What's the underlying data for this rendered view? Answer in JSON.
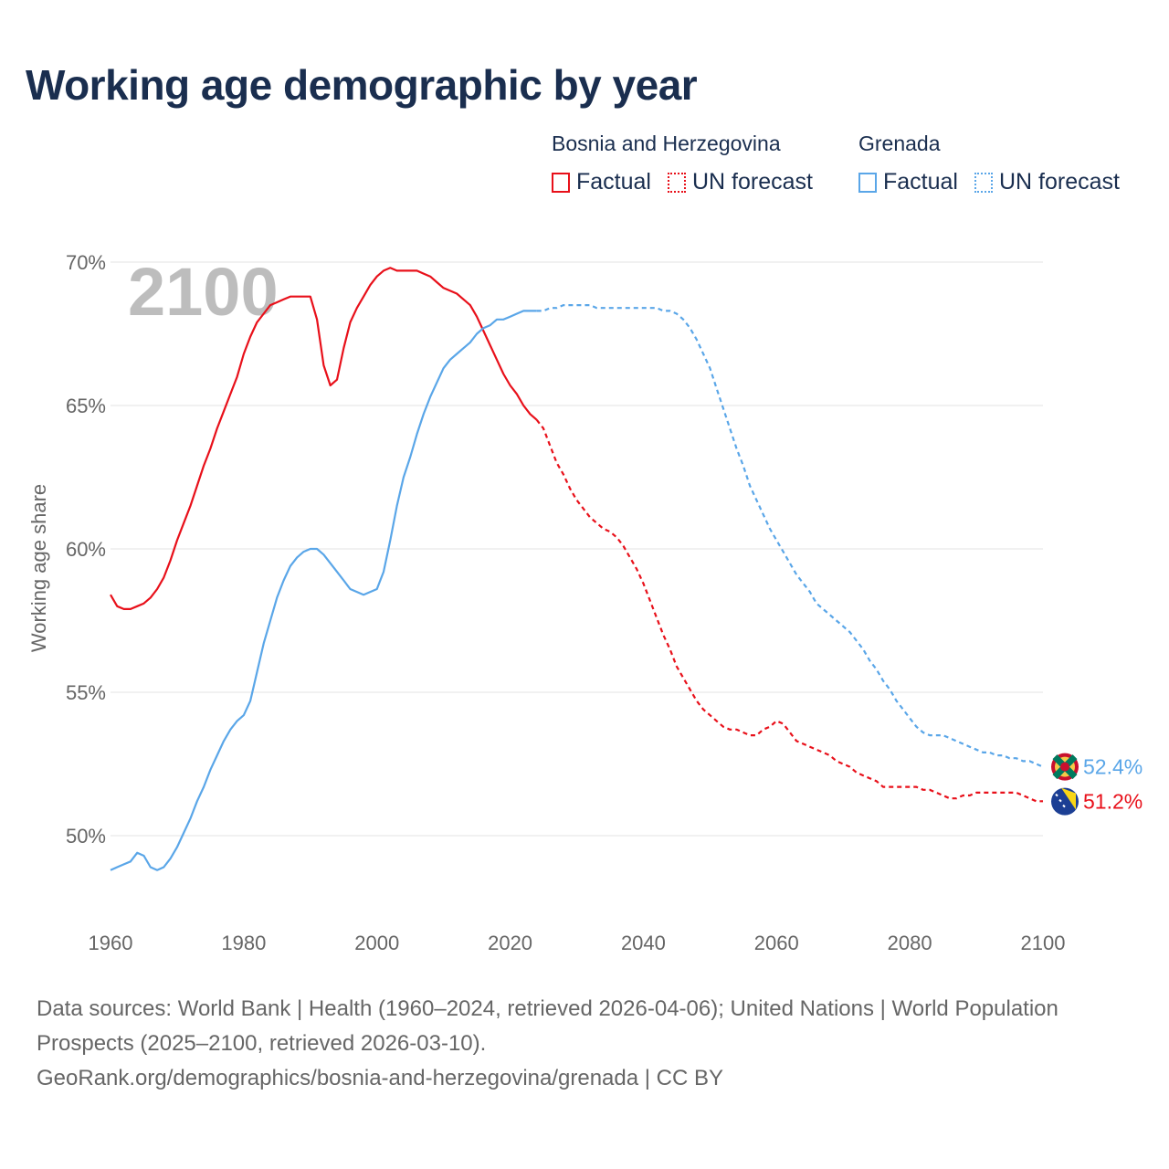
{
  "title": "Working age demographic by year",
  "legend": {
    "bosnia": {
      "name": "Bosnia and Herzegovina",
      "factual": "Factual",
      "forecast": "UN forecast",
      "color": "#e8101a"
    },
    "grenada": {
      "name": "Grenada",
      "factual": "Factual",
      "forecast": "UN forecast",
      "color": "#5aa6e8"
    }
  },
  "chart_data": {
    "type": "line",
    "title": "Working age demographic by year",
    "year_watermark": "2100",
    "xlabel": "",
    "ylabel": "Working age share",
    "xlim": [
      1960,
      2100
    ],
    "ylim": [
      48,
      70
    ],
    "x_ticks": [
      "1960",
      "1980",
      "2000",
      "2020",
      "2040",
      "2060",
      "2080",
      "2100"
    ],
    "y_ticks": [
      "50%",
      "55%",
      "60%",
      "65%",
      "70%"
    ],
    "factual_end_year": 2024,
    "series": [
      {
        "name": "Bosnia and Herzegovina",
        "color": "#e8101a",
        "end_label": "51.2%",
        "points": [
          [
            1960,
            58.4
          ],
          [
            1961,
            58.0
          ],
          [
            1962,
            57.9
          ],
          [
            1963,
            57.9
          ],
          [
            1964,
            58.0
          ],
          [
            1965,
            58.1
          ],
          [
            1966,
            58.3
          ],
          [
            1967,
            58.6
          ],
          [
            1968,
            59.0
          ],
          [
            1969,
            59.6
          ],
          [
            1970,
            60.3
          ],
          [
            1971,
            60.9
          ],
          [
            1972,
            61.5
          ],
          [
            1973,
            62.2
          ],
          [
            1974,
            62.9
          ],
          [
            1975,
            63.5
          ],
          [
            1976,
            64.2
          ],
          [
            1977,
            64.8
          ],
          [
            1978,
            65.4
          ],
          [
            1979,
            66.0
          ],
          [
            1980,
            66.8
          ],
          [
            1981,
            67.4
          ],
          [
            1982,
            67.9
          ],
          [
            1983,
            68.2
          ],
          [
            1984,
            68.5
          ],
          [
            1985,
            68.6
          ],
          [
            1986,
            68.7
          ],
          [
            1987,
            68.8
          ],
          [
            1988,
            68.8
          ],
          [
            1989,
            68.8
          ],
          [
            1990,
            68.8
          ],
          [
            1991,
            68.0
          ],
          [
            1992,
            66.4
          ],
          [
            1993,
            65.7
          ],
          [
            1994,
            65.9
          ],
          [
            1995,
            67.0
          ],
          [
            1996,
            67.9
          ],
          [
            1997,
            68.4
          ],
          [
            1998,
            68.8
          ],
          [
            1999,
            69.2
          ],
          [
            2000,
            69.5
          ],
          [
            2001,
            69.7
          ],
          [
            2002,
            69.8
          ],
          [
            2003,
            69.7
          ],
          [
            2004,
            69.7
          ],
          [
            2005,
            69.7
          ],
          [
            2006,
            69.7
          ],
          [
            2007,
            69.6
          ],
          [
            2008,
            69.5
          ],
          [
            2009,
            69.3
          ],
          [
            2010,
            69.1
          ],
          [
            2011,
            69.0
          ],
          [
            2012,
            68.9
          ],
          [
            2013,
            68.7
          ],
          [
            2014,
            68.5
          ],
          [
            2015,
            68.1
          ],
          [
            2016,
            67.6
          ],
          [
            2017,
            67.1
          ],
          [
            2018,
            66.6
          ],
          [
            2019,
            66.1
          ],
          [
            2020,
            65.7
          ],
          [
            2021,
            65.4
          ],
          [
            2022,
            65.0
          ],
          [
            2023,
            64.7
          ],
          [
            2024,
            64.5
          ],
          [
            2025,
            64.2
          ],
          [
            2026,
            63.6
          ],
          [
            2027,
            63.0
          ],
          [
            2028,
            62.6
          ],
          [
            2029,
            62.1
          ],
          [
            2030,
            61.7
          ],
          [
            2031,
            61.4
          ],
          [
            2032,
            61.1
          ],
          [
            2033,
            60.9
          ],
          [
            2034,
            60.7
          ],
          [
            2035,
            60.6
          ],
          [
            2036,
            60.4
          ],
          [
            2037,
            60.1
          ],
          [
            2038,
            59.7
          ],
          [
            2039,
            59.3
          ],
          [
            2040,
            58.8
          ],
          [
            2041,
            58.2
          ],
          [
            2042,
            57.6
          ],
          [
            2043,
            57.0
          ],
          [
            2044,
            56.5
          ],
          [
            2045,
            55.9
          ],
          [
            2046,
            55.5
          ],
          [
            2047,
            55.1
          ],
          [
            2048,
            54.7
          ],
          [
            2049,
            54.4
          ],
          [
            2050,
            54.2
          ],
          [
            2051,
            54.0
          ],
          [
            2052,
            53.8
          ],
          [
            2053,
            53.7
          ],
          [
            2054,
            53.7
          ],
          [
            2055,
            53.6
          ],
          [
            2056,
            53.5
          ],
          [
            2057,
            53.5
          ],
          [
            2058,
            53.7
          ],
          [
            2059,
            53.8
          ],
          [
            2060,
            54.0
          ],
          [
            2061,
            53.9
          ],
          [
            2062,
            53.6
          ],
          [
            2063,
            53.3
          ],
          [
            2064,
            53.2
          ],
          [
            2065,
            53.1
          ],
          [
            2066,
            53.0
          ],
          [
            2067,
            52.9
          ],
          [
            2068,
            52.8
          ],
          [
            2069,
            52.6
          ],
          [
            2070,
            52.5
          ],
          [
            2071,
            52.4
          ],
          [
            2072,
            52.2
          ],
          [
            2073,
            52.1
          ],
          [
            2074,
            52.0
          ],
          [
            2075,
            51.9
          ],
          [
            2076,
            51.7
          ],
          [
            2077,
            51.7
          ],
          [
            2078,
            51.7
          ],
          [
            2079,
            51.7
          ],
          [
            2080,
            51.7
          ],
          [
            2081,
            51.7
          ],
          [
            2082,
            51.6
          ],
          [
            2083,
            51.6
          ],
          [
            2084,
            51.5
          ],
          [
            2085,
            51.4
          ],
          [
            2086,
            51.3
          ],
          [
            2087,
            51.3
          ],
          [
            2088,
            51.4
          ],
          [
            2089,
            51.4
          ],
          [
            2090,
            51.5
          ],
          [
            2091,
            51.5
          ],
          [
            2092,
            51.5
          ],
          [
            2093,
            51.5
          ],
          [
            2094,
            51.5
          ],
          [
            2095,
            51.5
          ],
          [
            2096,
            51.5
          ],
          [
            2097,
            51.4
          ],
          [
            2098,
            51.3
          ],
          [
            2099,
            51.2
          ],
          [
            2100,
            51.2
          ]
        ]
      },
      {
        "name": "Grenada",
        "color": "#5aa6e8",
        "end_label": "52.4%",
        "points": [
          [
            1960,
            48.8
          ],
          [
            1961,
            48.9
          ],
          [
            1962,
            49.0
          ],
          [
            1963,
            49.1
          ],
          [
            1964,
            49.4
          ],
          [
            1965,
            49.3
          ],
          [
            1966,
            48.9
          ],
          [
            1967,
            48.8
          ],
          [
            1968,
            48.9
          ],
          [
            1969,
            49.2
          ],
          [
            1970,
            49.6
          ],
          [
            1971,
            50.1
          ],
          [
            1972,
            50.6
          ],
          [
            1973,
            51.2
          ],
          [
            1974,
            51.7
          ],
          [
            1975,
            52.3
          ],
          [
            1976,
            52.8
          ],
          [
            1977,
            53.3
          ],
          [
            1978,
            53.7
          ],
          [
            1979,
            54.0
          ],
          [
            1980,
            54.2
          ],
          [
            1981,
            54.7
          ],
          [
            1982,
            55.7
          ],
          [
            1983,
            56.7
          ],
          [
            1984,
            57.5
          ],
          [
            1985,
            58.3
          ],
          [
            1986,
            58.9
          ],
          [
            1987,
            59.4
          ],
          [
            1988,
            59.7
          ],
          [
            1989,
            59.9
          ],
          [
            1990,
            60.0
          ],
          [
            1991,
            60.0
          ],
          [
            1992,
            59.8
          ],
          [
            1993,
            59.5
          ],
          [
            1994,
            59.2
          ],
          [
            1995,
            58.9
          ],
          [
            1996,
            58.6
          ],
          [
            1997,
            58.5
          ],
          [
            1998,
            58.4
          ],
          [
            1999,
            58.5
          ],
          [
            2000,
            58.6
          ],
          [
            2001,
            59.2
          ],
          [
            2002,
            60.3
          ],
          [
            2003,
            61.5
          ],
          [
            2004,
            62.5
          ],
          [
            2005,
            63.2
          ],
          [
            2006,
            64.0
          ],
          [
            2007,
            64.7
          ],
          [
            2008,
            65.3
          ],
          [
            2009,
            65.8
          ],
          [
            2010,
            66.3
          ],
          [
            2011,
            66.6
          ],
          [
            2012,
            66.8
          ],
          [
            2013,
            67.0
          ],
          [
            2014,
            67.2
          ],
          [
            2015,
            67.5
          ],
          [
            2016,
            67.7
          ],
          [
            2017,
            67.8
          ],
          [
            2018,
            68.0
          ],
          [
            2019,
            68.0
          ],
          [
            2020,
            68.1
          ],
          [
            2021,
            68.2
          ],
          [
            2022,
            68.3
          ],
          [
            2023,
            68.3
          ],
          [
            2024,
            68.3
          ],
          [
            2025,
            68.3
          ],
          [
            2026,
            68.4
          ],
          [
            2027,
            68.4
          ],
          [
            2028,
            68.5
          ],
          [
            2029,
            68.5
          ],
          [
            2030,
            68.5
          ],
          [
            2031,
            68.5
          ],
          [
            2032,
            68.5
          ],
          [
            2033,
            68.4
          ],
          [
            2034,
            68.4
          ],
          [
            2035,
            68.4
          ],
          [
            2036,
            68.4
          ],
          [
            2037,
            68.4
          ],
          [
            2038,
            68.4
          ],
          [
            2039,
            68.4
          ],
          [
            2040,
            68.4
          ],
          [
            2041,
            68.4
          ],
          [
            2042,
            68.4
          ],
          [
            2043,
            68.3
          ],
          [
            2044,
            68.3
          ],
          [
            2045,
            68.2
          ],
          [
            2046,
            68.0
          ],
          [
            2047,
            67.7
          ],
          [
            2048,
            67.3
          ],
          [
            2049,
            66.8
          ],
          [
            2050,
            66.3
          ],
          [
            2051,
            65.6
          ],
          [
            2052,
            64.9
          ],
          [
            2053,
            64.2
          ],
          [
            2054,
            63.5
          ],
          [
            2055,
            62.9
          ],
          [
            2056,
            62.2
          ],
          [
            2057,
            61.7
          ],
          [
            2058,
            61.2
          ],
          [
            2059,
            60.7
          ],
          [
            2060,
            60.3
          ],
          [
            2061,
            59.9
          ],
          [
            2062,
            59.5
          ],
          [
            2063,
            59.1
          ],
          [
            2064,
            58.8
          ],
          [
            2065,
            58.5
          ],
          [
            2066,
            58.1
          ],
          [
            2067,
            57.9
          ],
          [
            2068,
            57.7
          ],
          [
            2069,
            57.5
          ],
          [
            2070,
            57.3
          ],
          [
            2071,
            57.1
          ],
          [
            2072,
            56.8
          ],
          [
            2073,
            56.5
          ],
          [
            2074,
            56.1
          ],
          [
            2075,
            55.8
          ],
          [
            2076,
            55.4
          ],
          [
            2077,
            55.1
          ],
          [
            2078,
            54.7
          ],
          [
            2079,
            54.4
          ],
          [
            2080,
            54.1
          ],
          [
            2081,
            53.8
          ],
          [
            2082,
            53.6
          ],
          [
            2083,
            53.5
          ],
          [
            2084,
            53.5
          ],
          [
            2085,
            53.5
          ],
          [
            2086,
            53.4
          ],
          [
            2087,
            53.3
          ],
          [
            2088,
            53.2
          ],
          [
            2089,
            53.1
          ],
          [
            2090,
            53.0
          ],
          [
            2091,
            52.9
          ],
          [
            2092,
            52.9
          ],
          [
            2093,
            52.8
          ],
          [
            2094,
            52.8
          ],
          [
            2095,
            52.7
          ],
          [
            2096,
            52.7
          ],
          [
            2097,
            52.6
          ],
          [
            2098,
            52.6
          ],
          [
            2099,
            52.5
          ],
          [
            2100,
            52.4
          ]
        ]
      }
    ]
  },
  "footer": {
    "line1": "Data sources: World Bank | Health (1960–2024, retrieved 2026-04-06); United Nations | World Population Prospects (2025–2100, retrieved 2026-03-10).",
    "line2": "GeoRank.org/demographics/bosnia-and-herzegovina/grenada | CC BY"
  }
}
